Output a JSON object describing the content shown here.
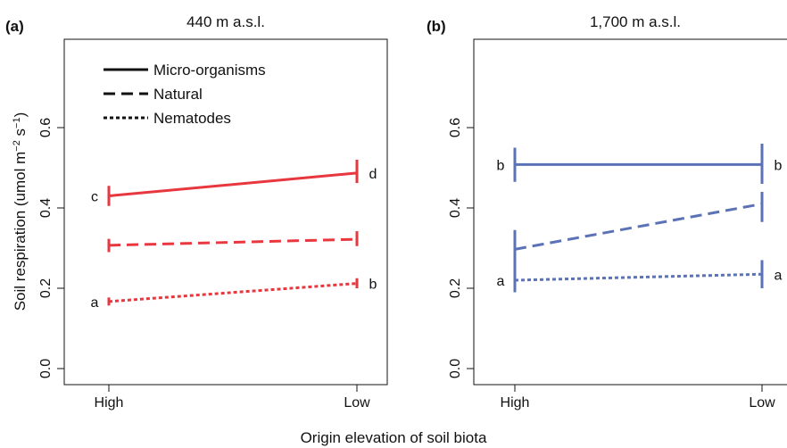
{
  "figure": {
    "ylabel": "Soil respiration (umol m",
    "ylabel_sup1": "−2",
    "ylabel_mid": " s",
    "ylabel_sup2": "−1",
    "ylabel_end": ")",
    "xlabel": "Origin elevation of soil biota"
  },
  "legend": [
    {
      "label": "Micro-organisms",
      "style": "solid"
    },
    {
      "label": "Natural",
      "style": "dashed"
    },
    {
      "label": "Nematodes",
      "style": "dotted"
    }
  ],
  "chart_data": [
    {
      "type": "line",
      "panel_label": "(a)",
      "title": "440 m a.s.l.",
      "color": "#e8373f",
      "categories": [
        "High",
        "Low"
      ],
      "ylim": [
        -0.04,
        0.82
      ],
      "yticks": [
        "0.0",
        "0.2",
        "0.4",
        "0.6"
      ],
      "ytick_values": [
        0.0,
        0.2,
        0.4,
        0.6
      ],
      "series": [
        {
          "name": "Micro-organisms",
          "style": "solid",
          "values": [
            0.43,
            0.487
          ],
          "err_low": [
            0.405,
            0.462
          ],
          "err_high": [
            0.455,
            0.52
          ],
          "letters": [
            "c",
            "d"
          ]
        },
        {
          "name": "Natural",
          "style": "dashed",
          "values": [
            0.307,
            0.322
          ],
          "err_low": [
            0.29,
            0.305
          ],
          "err_high": [
            0.323,
            0.342
          ],
          "letters": [
            "",
            ""
          ]
        },
        {
          "name": "Nematodes",
          "style": "dotted",
          "values": [
            0.167,
            0.212
          ],
          "err_low": [
            0.157,
            0.2
          ],
          "err_high": [
            0.177,
            0.225
          ],
          "letters": [
            "a",
            "b"
          ]
        }
      ]
    },
    {
      "type": "line",
      "panel_label": "(b)",
      "title": "1,700 m a.s.l.",
      "color": "#5b73b6",
      "categories": [
        "High",
        "Low"
      ],
      "ylim": [
        -0.04,
        0.82
      ],
      "yticks": [
        "0.0",
        "0.2",
        "0.4",
        "0.6"
      ],
      "ytick_values": [
        0.0,
        0.2,
        0.4,
        0.6
      ],
      "series": [
        {
          "name": "Micro-organisms",
          "style": "solid",
          "values": [
            0.508,
            0.508
          ],
          "err_low": [
            0.465,
            0.46
          ],
          "err_high": [
            0.55,
            0.56
          ],
          "letters": [
            "b",
            "b"
          ]
        },
        {
          "name": "Natural",
          "style": "dashed",
          "values": [
            0.297,
            0.41
          ],
          "err_low": [
            0.25,
            0.365
          ],
          "err_high": [
            0.345,
            0.44
          ],
          "letters": [
            "",
            ""
          ]
        },
        {
          "name": "Nematodes",
          "style": "dotted",
          "values": [
            0.22,
            0.235
          ],
          "err_low": [
            0.19,
            0.2
          ],
          "err_high": [
            0.25,
            0.27
          ],
          "letters": [
            "a",
            "a"
          ]
        }
      ]
    }
  ]
}
